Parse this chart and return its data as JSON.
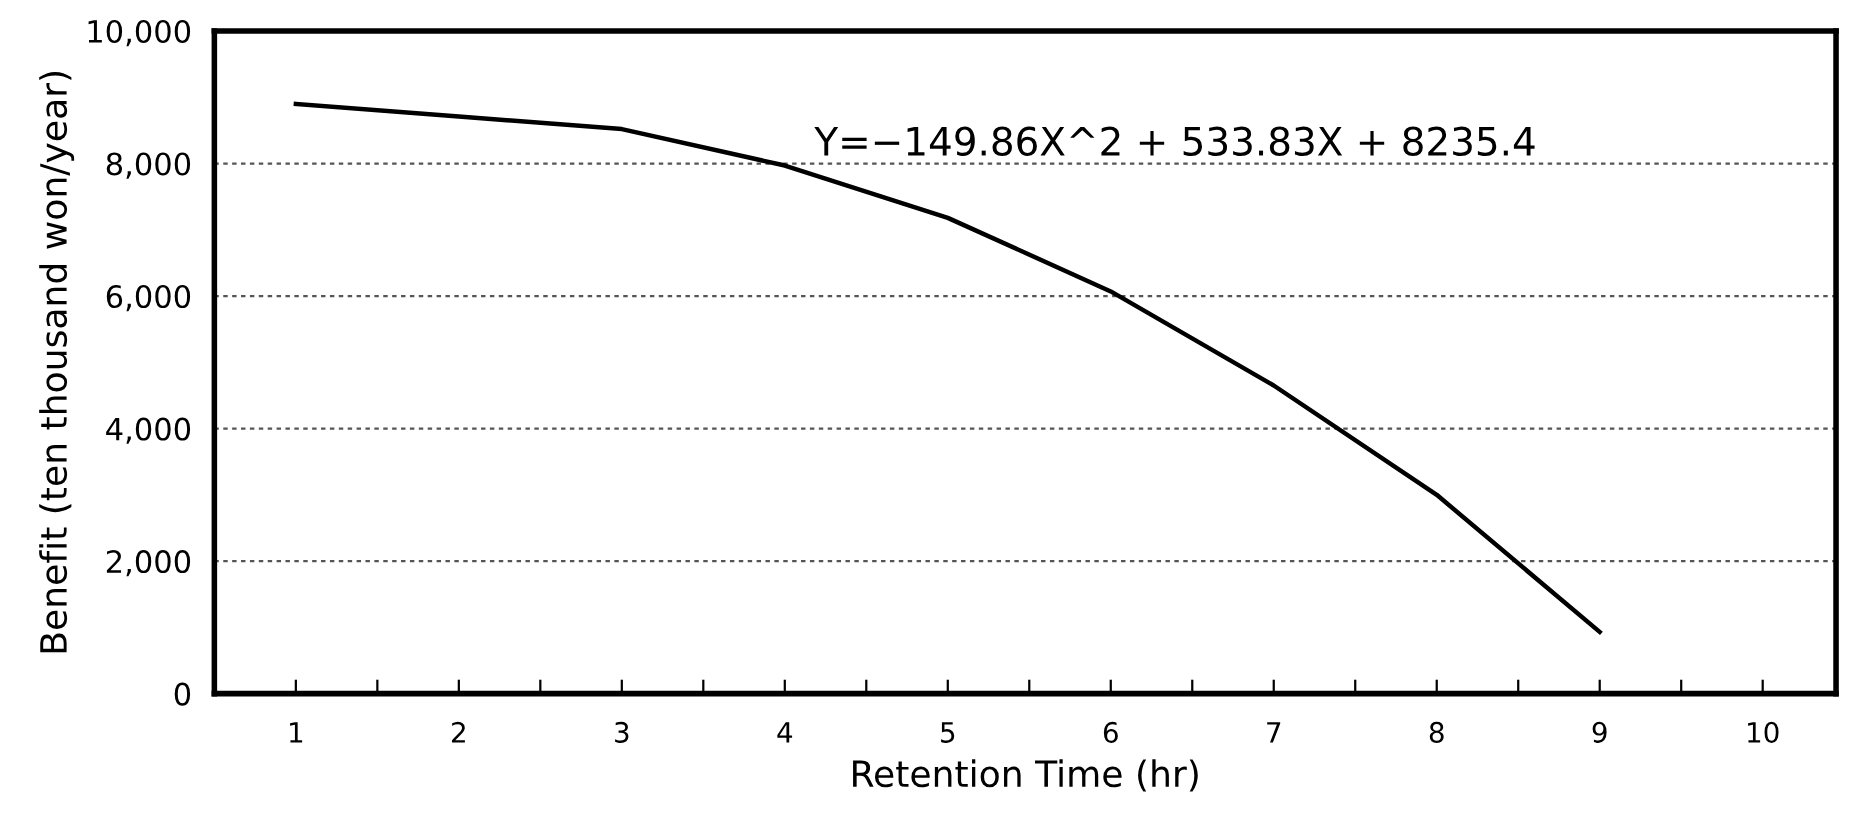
{
  "chart_data": {
    "type": "line",
    "xlabel": "Retention Time (hr)",
    "ylabel": "Benefit (ten thousand won/year)",
    "x": [
      1,
      2,
      3,
      4,
      5,
      6,
      7,
      8,
      9
    ],
    "series": [
      {
        "color": "#000000",
        "values": [
          8900,
          8710,
          8520,
          7970,
          7180,
          6070,
          4650,
          3000,
          930
        ]
      }
    ],
    "xlim": [
      0.5,
      10.45
    ],
    "xticks": [
      1,
      {
        "value": 1.5,
        "label": null
      },
      2,
      {
        "value": 2.5,
        "label": null
      },
      3,
      {
        "value": 3.5,
        "label": null
      },
      4,
      {
        "value": 4.5,
        "label": null
      },
      5,
      {
        "value": 5.5,
        "label": null
      },
      6,
      {
        "value": 6.5,
        "label": null
      },
      7,
      {
        "value": 7.5,
        "label": null
      },
      8,
      {
        "value": 8.5,
        "label": null
      },
      9,
      {
        "value": 9.5,
        "label": null
      },
      10
    ],
    "ylim": [
      0,
      10000
    ],
    "yticks": [
      {
        "value": 0,
        "label": "0"
      },
      {
        "value": 2000,
        "label": "2,000"
      },
      {
        "value": 4000,
        "label": "4,000"
      },
      {
        "value": 6000,
        "label": "6,000"
      },
      {
        "value": 8000,
        "label": "8,000"
      },
      {
        "value": 10000,
        "label": "10,000"
      }
    ],
    "grid": "y",
    "marker": "none",
    "line_style": "solid",
    "annotations": [
      "Y=−149.86X^2 + 533.83X + 8235.4"
    ]
  }
}
